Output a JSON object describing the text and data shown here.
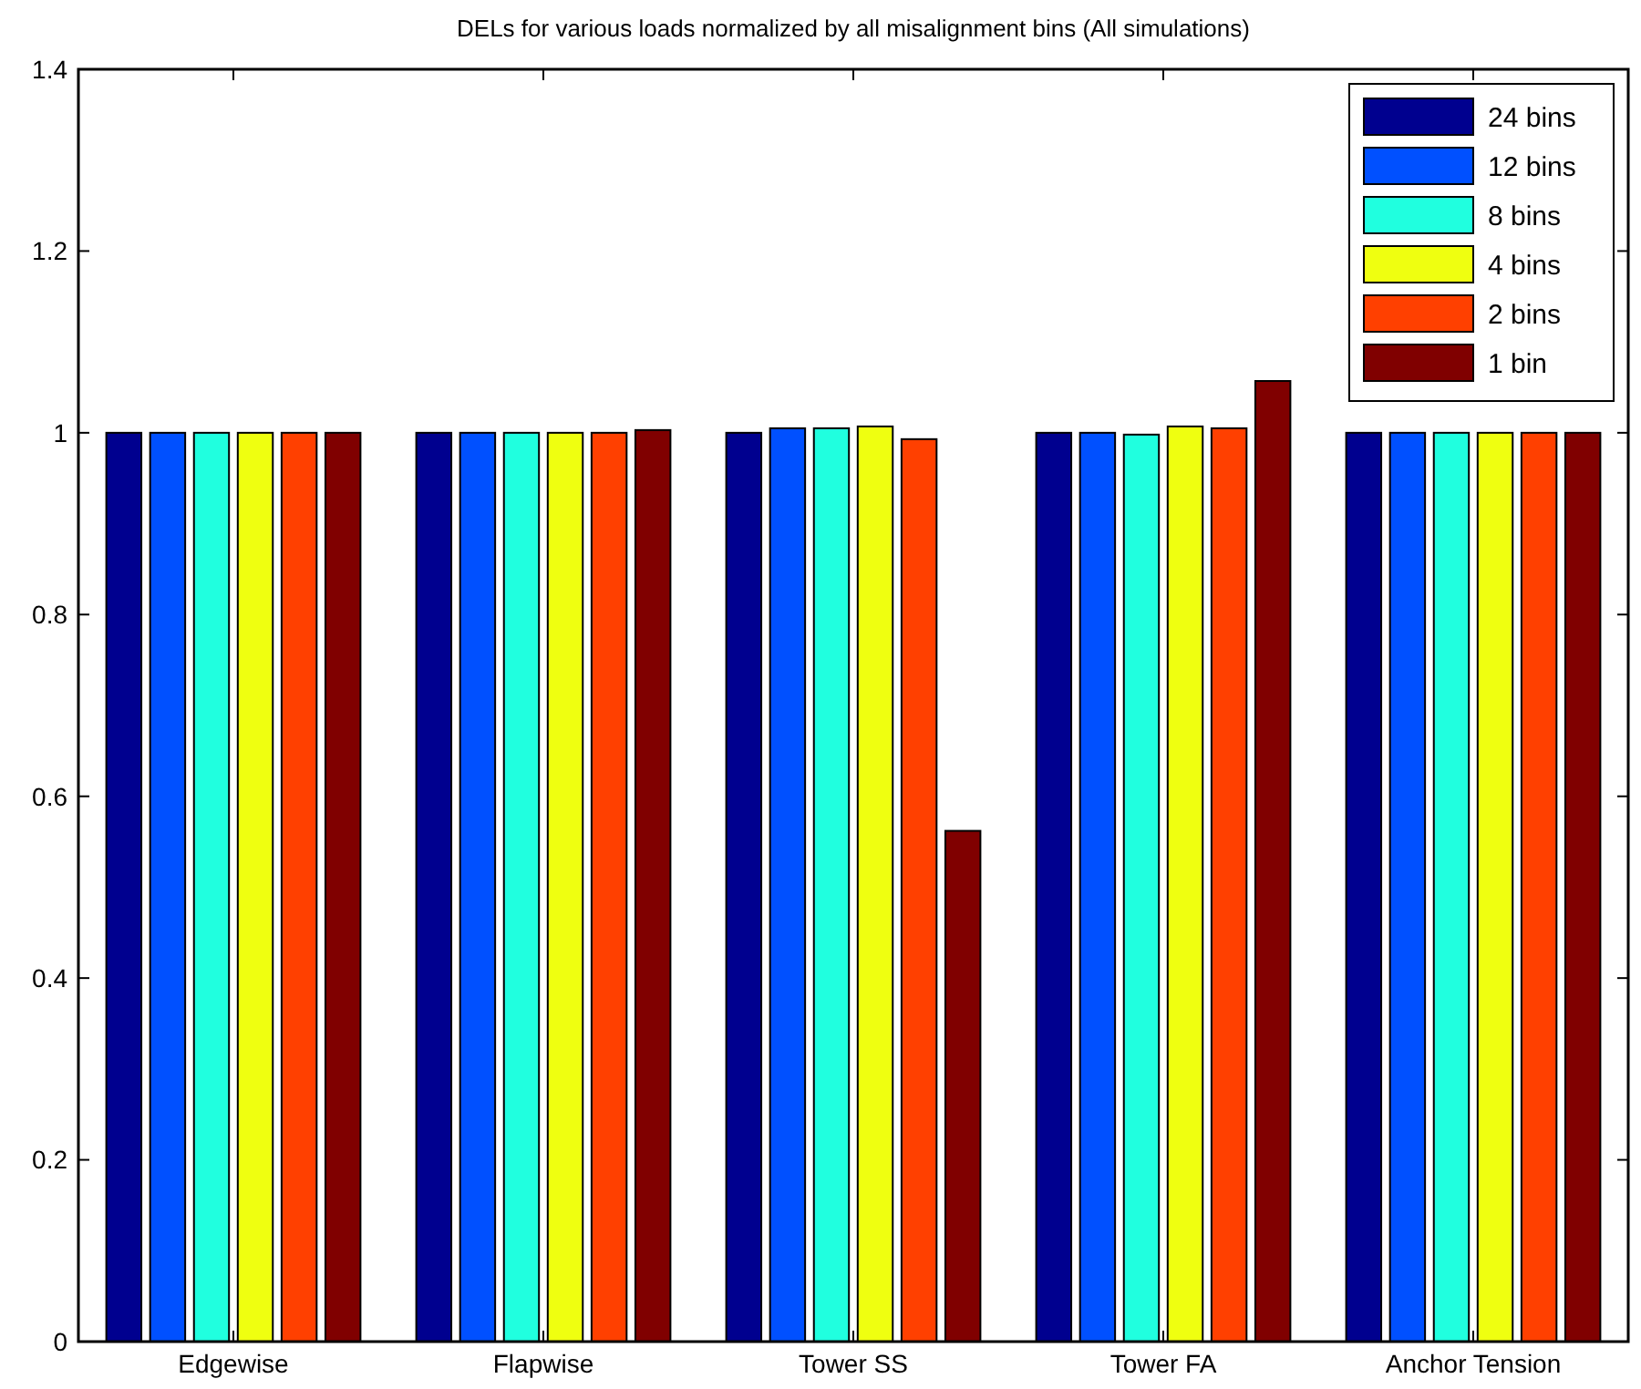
{
  "chart_data": {
    "type": "bar",
    "title": "DELs for various loads normalized by all misalignment bins (All simulations)",
    "categories": [
      "Edgewise",
      "Flapwise",
      "Tower SS",
      "Tower FA",
      "Anchor Tension"
    ],
    "series": [
      {
        "name": "24 bins",
        "color": "#00008f",
        "values": [
          1,
          1,
          1,
          1,
          1
        ]
      },
      {
        "name": "12 bins",
        "color": "#0050ff",
        "values": [
          1,
          1,
          1.005,
          1,
          1
        ]
      },
      {
        "name": "8 bins",
        "color": "#20ffdf",
        "values": [
          1,
          1,
          1.005,
          0.998,
          1
        ]
      },
      {
        "name": "4 bins",
        "color": "#efff10",
        "values": [
          1,
          1,
          1.007,
          1.007,
          1
        ]
      },
      {
        "name": "2 bins",
        "color": "#ff4000",
        "values": [
          1,
          1,
          0.993,
          1.005,
          1
        ]
      },
      {
        "name": "1 bin",
        "color": "#800000",
        "values": [
          1,
          1.003,
          0.562,
          1.057,
          1
        ]
      }
    ],
    "ylim": [
      0,
      1.4
    ],
    "yticks": [
      0,
      0.2,
      0.4,
      0.6,
      0.8,
      1,
      1.2,
      1.4
    ],
    "grid": false,
    "legend": "top right"
  }
}
